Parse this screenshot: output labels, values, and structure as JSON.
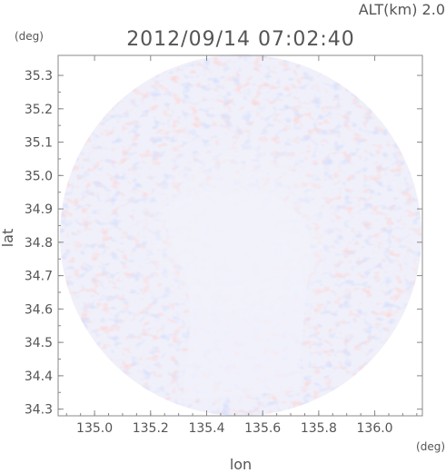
{
  "header": {
    "altitude_label": "ALT(km) 2.0",
    "timestamp": "2012/09/14 07:02:40"
  },
  "chart_data": {
    "type": "heatmap",
    "title": "2012/09/14 07:02:40",
    "subtitle": "ALT(km) 2.0",
    "xlabel": "lon",
    "ylabel": "lat",
    "x_unit": "(deg)",
    "y_unit": "(deg)",
    "xlim": [
      134.87,
      136.17
    ],
    "ylim": [
      34.28,
      35.36
    ],
    "x_ticks": [
      "135.0",
      "135.2",
      "135.4",
      "135.6",
      "135.8",
      "136.0"
    ],
    "y_ticks": [
      "34.3",
      "34.4",
      "34.5",
      "34.6",
      "34.7",
      "34.8",
      "34.9",
      "35.0",
      "35.1",
      "35.2",
      "35.3"
    ],
    "x_tick_values": [
      135.0,
      135.2,
      135.4,
      135.6,
      135.8,
      136.0
    ],
    "y_tick_values": [
      34.3,
      34.4,
      34.5,
      34.6,
      34.7,
      34.8,
      34.9,
      35.0,
      35.1,
      35.2,
      35.3
    ],
    "domain": {
      "shape": "circle",
      "center_lon": 135.52,
      "center_lat": 34.82
    },
    "colors": {
      "positive": "#f4b8b8",
      "negative": "#b8c4f4",
      "background": "#f0f0fa",
      "axis": "#888888"
    },
    "grid": false
  }
}
